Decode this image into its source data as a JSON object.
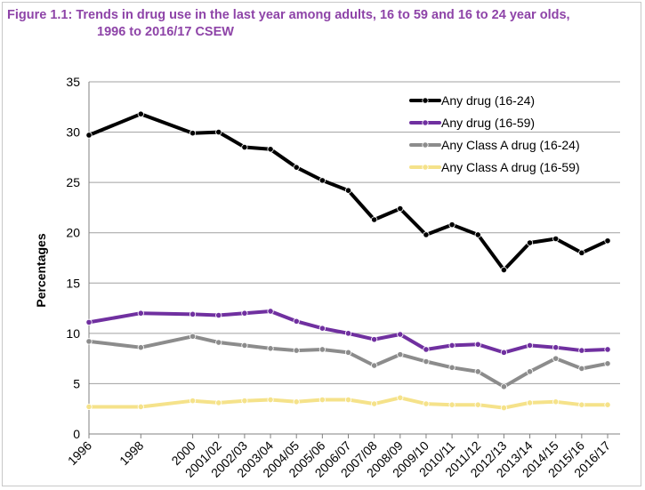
{
  "figure": {
    "title_line1": "Figure 1.1: Trends in drug use in the last year among adults, 16 to 59 and 16 to 24 year olds,",
    "title_line2": "1996 to 2016/17 CSEW"
  },
  "colors": {
    "title": "#8e44a8",
    "gridline": "#a0a0a0",
    "axis": "#808080"
  },
  "chart_data": {
    "type": "line",
    "title": "Trends in drug use in the last year among adults, 16 to 59 and 16 to 24 year olds, 1996 to 2016/17 CSEW",
    "xlabel": "",
    "ylabel": "Percentages",
    "ylim": [
      0,
      35
    ],
    "yticks": [
      0,
      5,
      10,
      15,
      20,
      25,
      30,
      35
    ],
    "grid": true,
    "legend_position": "top-right",
    "categories": [
      "1996",
      "1998",
      "2000",
      "2001/02",
      "2002/03",
      "2003/04",
      "2004/05",
      "2005/06",
      "2006/07",
      "2007/08",
      "2008/09",
      "2009/10",
      "2010/11",
      "2011/12",
      "2012/13",
      "2013/14",
      "2014/15",
      "2015/16",
      "2016/17"
    ],
    "x_years": [
      1996,
      1998,
      2000,
      2001,
      2002,
      2003,
      2004,
      2005,
      2006,
      2007,
      2008,
      2009,
      2010,
      2011,
      2012,
      2013,
      2014,
      2015,
      2016
    ],
    "series": [
      {
        "name": "Any drug (16-24)",
        "color": "#000000",
        "values": [
          29.7,
          31.8,
          29.9,
          30.0,
          28.5,
          28.3,
          26.5,
          25.2,
          24.2,
          21.3,
          22.4,
          19.8,
          20.8,
          19.8,
          16.3,
          19.0,
          19.4,
          18.0,
          19.2
        ]
      },
      {
        "name": "Any drug (16-59)",
        "color": "#7030a0",
        "values": [
          11.1,
          12.0,
          11.9,
          11.8,
          12.0,
          12.2,
          11.2,
          10.5,
          10.0,
          9.4,
          9.9,
          8.4,
          8.8,
          8.9,
          8.1,
          8.8,
          8.6,
          8.3,
          8.4
        ]
      },
      {
        "name": "Any Class A drug (16-24)",
        "color": "#8c8c8c",
        "values": [
          9.2,
          8.6,
          9.7,
          9.1,
          8.8,
          8.5,
          8.3,
          8.4,
          8.1,
          6.8,
          7.9,
          7.2,
          6.6,
          6.2,
          4.7,
          6.2,
          7.5,
          6.5,
          7.0
        ]
      },
      {
        "name": "Any Class A drug (16-59)",
        "color": "#f5e28a",
        "values": [
          2.7,
          2.7,
          3.3,
          3.1,
          3.3,
          3.4,
          3.2,
          3.4,
          3.4,
          3.0,
          3.6,
          3.0,
          2.9,
          2.9,
          2.6,
          3.1,
          3.2,
          2.9,
          2.9
        ]
      }
    ]
  }
}
